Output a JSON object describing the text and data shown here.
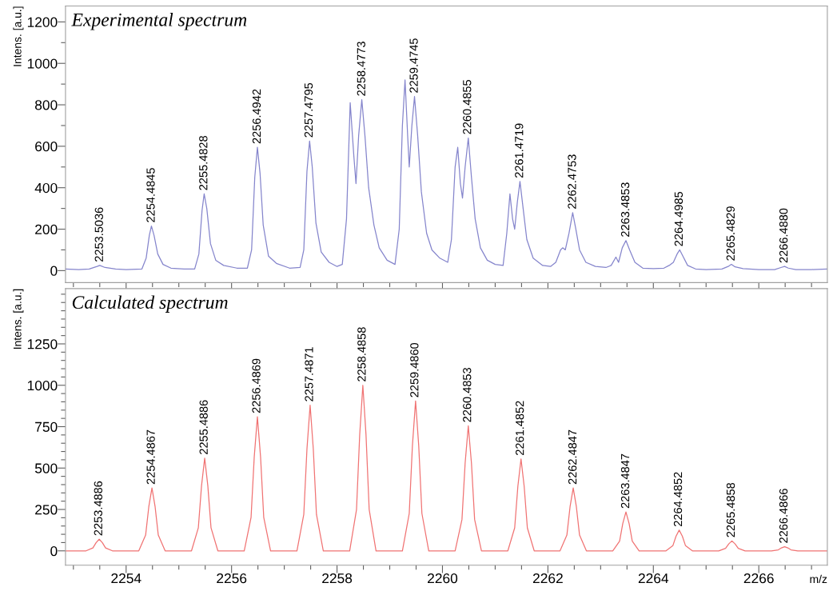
{
  "chart_data": [
    {
      "type": "line",
      "title": "Experimental spectrum",
      "ylabel": "Intens. [a.u.]",
      "tick_labels": "y",
      "grid": false,
      "legend": false,
      "xlim": [
        2252.85,
        2267.3
      ],
      "ylim": [
        -58,
        1277
      ],
      "xticks": [
        {
          "value": 2253,
          "label": null
        },
        {
          "value": 2253.5,
          "label": null
        },
        {
          "value": 2254,
          "label": null
        },
        {
          "value": 2254.5,
          "label": null
        },
        {
          "value": 2255,
          "label": null
        },
        {
          "value": 2255.5,
          "label": null
        },
        {
          "value": 2256,
          "label": null
        },
        {
          "value": 2256.5,
          "label": null
        },
        {
          "value": 2257,
          "label": null
        },
        {
          "value": 2257.5,
          "label": null
        },
        {
          "value": 2258,
          "label": null
        },
        {
          "value": 2258.5,
          "label": null
        },
        {
          "value": 2259,
          "label": null
        },
        {
          "value": 2259.5,
          "label": null
        },
        {
          "value": 2260,
          "label": null
        },
        {
          "value": 2260.5,
          "label": null
        },
        {
          "value": 2261,
          "label": null
        },
        {
          "value": 2261.5,
          "label": null
        },
        {
          "value": 2262,
          "label": null
        },
        {
          "value": 2262.5,
          "label": null
        },
        {
          "value": 2263,
          "label": null
        },
        {
          "value": 2263.5,
          "label": null
        },
        {
          "value": 2264,
          "label": null
        },
        {
          "value": 2264.5,
          "label": null
        },
        {
          "value": 2265,
          "label": null
        },
        {
          "value": 2265.5,
          "label": null
        },
        {
          "value": 2266,
          "label": null
        },
        {
          "value": 2266.5,
          "label": null
        },
        {
          "value": 2267,
          "label": null
        }
      ],
      "yticks": [
        0,
        {
          "value": 100,
          "label": null
        },
        200,
        {
          "value": 300,
          "label": null
        },
        400,
        {
          "value": 500,
          "label": null
        },
        600,
        {
          "value": 700,
          "label": null
        },
        800,
        {
          "value": 900,
          "label": null
        },
        1000,
        {
          "value": 1100,
          "label": null
        },
        1200
      ],
      "series": [
        {
          "color": "#8585cc",
          "x": [
            2252.85,
            2253.1,
            2253.3,
            2253.45,
            2253.5,
            2253.6,
            2253.8,
            2254.0,
            2254.3,
            2254.38,
            2254.44,
            2254.48,
            2254.53,
            2254.6,
            2254.7,
            2254.85,
            2255.1,
            2255.3,
            2255.38,
            2255.44,
            2255.48,
            2255.53,
            2255.6,
            2255.7,
            2255.85,
            2256.1,
            2256.3,
            2256.38,
            2256.44,
            2256.49,
            2256.54,
            2256.6,
            2256.7,
            2256.85,
            2257.1,
            2257.3,
            2257.37,
            2257.43,
            2257.48,
            2257.53,
            2257.6,
            2257.7,
            2257.85,
            2258.0,
            2258.1,
            2258.18,
            2258.25,
            2258.32,
            2258.36,
            2258.41,
            2258.47,
            2258.53,
            2258.6,
            2258.7,
            2258.8,
            2258.95,
            2259.1,
            2259.18,
            2259.24,
            2259.29,
            2259.34,
            2259.37,
            2259.42,
            2259.47,
            2259.53,
            2259.6,
            2259.7,
            2259.8,
            2259.95,
            2260.1,
            2260.17,
            2260.24,
            2260.29,
            2260.34,
            2260.38,
            2260.43,
            2260.49,
            2260.55,
            2260.62,
            2260.72,
            2260.85,
            2261.0,
            2261.15,
            2261.22,
            2261.28,
            2261.33,
            2261.37,
            2261.42,
            2261.47,
            2261.53,
            2261.6,
            2261.72,
            2261.9,
            2262.05,
            2262.15,
            2262.24,
            2262.28,
            2262.33,
            2262.4,
            2262.47,
            2262.53,
            2262.6,
            2262.72,
            2262.9,
            2263.1,
            2263.2,
            2263.29,
            2263.34,
            2263.41,
            2263.48,
            2263.55,
            2263.65,
            2263.8,
            2264.0,
            2264.2,
            2264.3,
            2264.38,
            2264.45,
            2264.5,
            2264.56,
            2264.65,
            2264.8,
            2265.0,
            2265.3,
            2265.42,
            2265.48,
            2265.55,
            2265.7,
            2266.0,
            2266.3,
            2266.42,
            2266.49,
            2266.56,
            2266.7,
            2267.0,
            2267.3
          ],
          "values": [
            8,
            5,
            8,
            20,
            25,
            15,
            8,
            5,
            8,
            60,
            170,
            215,
            170,
            80,
            30,
            12,
            8,
            8,
            80,
            290,
            370,
            300,
            130,
            50,
            25,
            12,
            12,
            100,
            450,
            595,
            470,
            220,
            70,
            35,
            12,
            15,
            100,
            480,
            625,
            500,
            230,
            90,
            40,
            20,
            30,
            250,
            810,
            550,
            420,
            650,
            825,
            650,
            400,
            220,
            110,
            50,
            30,
            200,
            700,
            920,
            650,
            500,
            700,
            840,
            650,
            380,
            180,
            100,
            60,
            40,
            150,
            500,
            595,
            420,
            350,
            500,
            640,
            450,
            250,
            110,
            50,
            30,
            25,
            180,
            370,
            250,
            200,
            330,
            430,
            300,
            150,
            60,
            25,
            20,
            40,
            100,
            110,
            100,
            180,
            280,
            200,
            100,
            40,
            20,
            15,
            25,
            65,
            40,
            110,
            145,
            100,
            40,
            12,
            10,
            12,
            25,
            40,
            80,
            100,
            70,
            25,
            8,
            5,
            8,
            20,
            30,
            18,
            10,
            5,
            5,
            15,
            20,
            12,
            5,
            5,
            8
          ]
        }
      ],
      "annotations": [
        {
          "text": "2253.5036",
          "x": 2253.5036,
          "y": 25
        },
        {
          "text": "2254.4845",
          "x": 2254.4845,
          "y": 215
        },
        {
          "text": "2255.4828",
          "x": 2255.4828,
          "y": 370
        },
        {
          "text": "2256.4942",
          "x": 2256.4942,
          "y": 595
        },
        {
          "text": "2257.4795",
          "x": 2257.4795,
          "y": 625
        },
        {
          "text": "2258.4773",
          "x": 2258.4773,
          "y": 825
        },
        {
          "text": "2259.4745",
          "x": 2259.4745,
          "y": 840
        },
        {
          "text": "2260.4855",
          "x": 2260.4855,
          "y": 640
        },
        {
          "text": "2261.4719",
          "x": 2261.4719,
          "y": 430
        },
        {
          "text": "2262.4753",
          "x": 2262.4753,
          "y": 280
        },
        {
          "text": "2263.4853",
          "x": 2263.4853,
          "y": 145
        },
        {
          "text": "2264.4985",
          "x": 2264.4985,
          "y": 100
        },
        {
          "text": "2265.4829",
          "x": 2265.4829,
          "y": 30
        },
        {
          "text": "2266.4880",
          "x": 2266.488,
          "y": 20
        }
      ]
    },
    {
      "type": "line",
      "title": "Calculated spectrum",
      "ylabel": "Intens. [a.u.]",
      "xlabel": "m/z",
      "grid": false,
      "legend": false,
      "xlim": [
        2252.85,
        2267.3
      ],
      "ylim": [
        -87,
        1584
      ],
      "xticks": [
        {
          "value": 2253,
          "label": null
        },
        {
          "value": 2253.5,
          "label": null
        },
        {
          "value": 2254,
          "label": "2254"
        },
        {
          "value": 2254.5,
          "label": null
        },
        {
          "value": 2255,
          "label": null
        },
        {
          "value": 2255.5,
          "label": null
        },
        {
          "value": 2256,
          "label": "2256"
        },
        {
          "value": 2256.5,
          "label": null
        },
        {
          "value": 2257,
          "label": null
        },
        {
          "value": 2257.5,
          "label": null
        },
        {
          "value": 2258,
          "label": "2258"
        },
        {
          "value": 2258.5,
          "label": null
        },
        {
          "value": 2259,
          "label": null
        },
        {
          "value": 2259.5,
          "label": null
        },
        {
          "value": 2260,
          "label": "2260"
        },
        {
          "value": 2260.5,
          "label": null
        },
        {
          "value": 2261,
          "label": null
        },
        {
          "value": 2261.5,
          "label": null
        },
        {
          "value": 2262,
          "label": "2262"
        },
        {
          "value": 2262.5,
          "label": null
        },
        {
          "value": 2263,
          "label": null
        },
        {
          "value": 2263.5,
          "label": null
        },
        {
          "value": 2264,
          "label": "2264"
        },
        {
          "value": 2264.5,
          "label": null
        },
        {
          "value": 2265,
          "label": null
        },
        {
          "value": 2265.5,
          "label": null
        },
        {
          "value": 2266,
          "label": "2266"
        },
        {
          "value": 2266.5,
          "label": null
        },
        {
          "value": 2267,
          "label": null
        }
      ],
      "yticks": [
        0,
        {
          "value": 50,
          "label": null
        },
        {
          "value": 100,
          "label": null
        },
        {
          "value": 150,
          "label": null
        },
        {
          "value": 200,
          "label": null
        },
        250,
        {
          "value": 300,
          "label": null
        },
        {
          "value": 350,
          "label": null
        },
        {
          "value": 400,
          "label": null
        },
        {
          "value": 450,
          "label": null
        },
        500,
        {
          "value": 550,
          "label": null
        },
        {
          "value": 600,
          "label": null
        },
        {
          "value": 650,
          "label": null
        },
        {
          "value": 700,
          "label": null
        },
        750,
        {
          "value": 800,
          "label": null
        },
        {
          "value": 850,
          "label": null
        },
        {
          "value": 900,
          "label": null
        },
        {
          "value": 950,
          "label": null
        },
        1000,
        {
          "value": 1050,
          "label": null
        },
        {
          "value": 1100,
          "label": null
        },
        {
          "value": 1150,
          "label": null
        },
        {
          "value": 1200,
          "label": null
        },
        1250,
        {
          "value": 1300,
          "label": null
        },
        {
          "value": 1350,
          "label": null
        },
        {
          "value": 1400,
          "label": null
        },
        {
          "value": 1450,
          "label": null
        },
        {
          "value": 1500,
          "label": null
        },
        {
          "value": 1550,
          "label": null
        }
      ],
      "series": [
        {
          "color": "#f07373",
          "x": [
            2252.85,
            2253.24,
            2253.37,
            2253.43,
            2253.49,
            2253.55,
            2253.61,
            2253.74,
            2254.24,
            2254.37,
            2254.43,
            2254.49,
            2254.55,
            2254.61,
            2254.74,
            2255.24,
            2255.37,
            2255.43,
            2255.49,
            2255.55,
            2255.61,
            2255.74,
            2256.24,
            2256.37,
            2256.43,
            2256.49,
            2256.55,
            2256.61,
            2256.74,
            2257.24,
            2257.37,
            2257.43,
            2257.49,
            2257.55,
            2257.61,
            2257.74,
            2258.24,
            2258.37,
            2258.43,
            2258.49,
            2258.55,
            2258.61,
            2258.74,
            2259.24,
            2259.37,
            2259.43,
            2259.49,
            2259.55,
            2259.61,
            2259.74,
            2260.24,
            2260.37,
            2260.43,
            2260.49,
            2260.55,
            2260.61,
            2260.74,
            2261.24,
            2261.37,
            2261.43,
            2261.49,
            2261.55,
            2261.61,
            2261.74,
            2262.23,
            2262.36,
            2262.42,
            2262.48,
            2262.54,
            2262.6,
            2262.73,
            2263.23,
            2263.36,
            2263.42,
            2263.48,
            2263.54,
            2263.6,
            2263.73,
            2264.24,
            2264.37,
            2264.43,
            2264.49,
            2264.55,
            2264.61,
            2264.74,
            2265.24,
            2265.37,
            2265.43,
            2265.49,
            2265.55,
            2265.61,
            2265.74,
            2266.24,
            2266.37,
            2266.43,
            2266.49,
            2266.55,
            2266.61,
            2266.74,
            2267.3
          ],
          "values": [
            0,
            0,
            18,
            49,
            70,
            49,
            18,
            0,
            0,
            95,
            266,
            380,
            266,
            95,
            0,
            0,
            140,
            392,
            560,
            392,
            140,
            0,
            0,
            203,
            567,
            810,
            567,
            203,
            0,
            0,
            220,
            616,
            880,
            616,
            220,
            0,
            0,
            250,
            700,
            1000,
            700,
            250,
            0,
            0,
            226,
            634,
            905,
            634,
            226,
            0,
            0,
            189,
            529,
            755,
            529,
            189,
            0,
            0,
            139,
            389,
            555,
            389,
            139,
            0,
            0,
            95,
            266,
            380,
            266,
            95,
            0,
            0,
            59,
            165,
            235,
            165,
            59,
            0,
            0,
            31,
            88,
            125,
            88,
            31,
            0,
            0,
            15,
            42,
            60,
            42,
            15,
            0,
            0,
            6,
            18,
            25,
            18,
            6,
            0,
            0
          ]
        }
      ],
      "annotations": [
        {
          "text": "2253.4886",
          "x": 2253.4886,
          "y": 70
        },
        {
          "text": "2254.4867",
          "x": 2254.4867,
          "y": 380
        },
        {
          "text": "2255.4886",
          "x": 2255.4886,
          "y": 560
        },
        {
          "text": "2256.4869",
          "x": 2256.4869,
          "y": 810
        },
        {
          "text": "2257.4871",
          "x": 2257.4871,
          "y": 880
        },
        {
          "text": "2258.4858",
          "x": 2258.4858,
          "y": 1000
        },
        {
          "text": "2259.4860",
          "x": 2259.486,
          "y": 905
        },
        {
          "text": "2260.4853",
          "x": 2260.4853,
          "y": 755
        },
        {
          "text": "2261.4852",
          "x": 2261.4852,
          "y": 555
        },
        {
          "text": "2262.4847",
          "x": 2262.4847,
          "y": 380
        },
        {
          "text": "2263.4847",
          "x": 2263.4847,
          "y": 235
        },
        {
          "text": "2264.4852",
          "x": 2264.4852,
          "y": 125
        },
        {
          "text": "2265.4858",
          "x": 2265.4858,
          "y": 60
        },
        {
          "text": "2266.4866",
          "x": 2266.4866,
          "y": 25
        }
      ]
    }
  ]
}
